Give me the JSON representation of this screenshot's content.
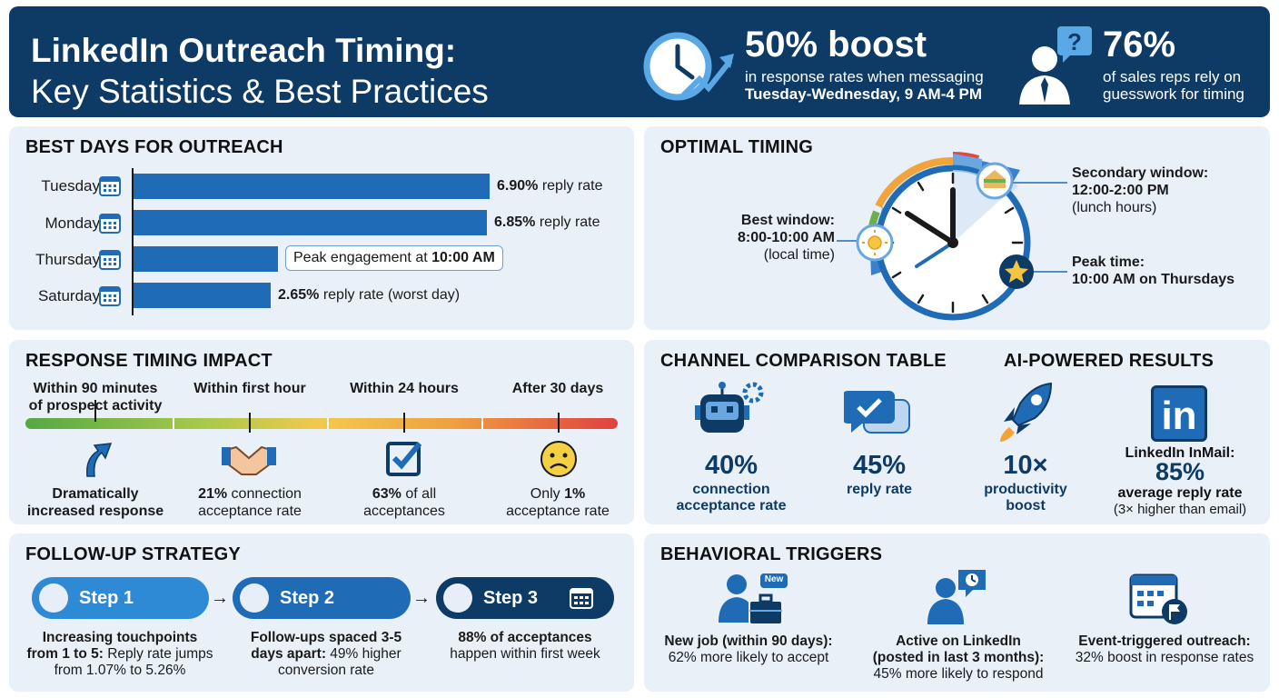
{
  "header": {
    "title_line1": "LinkedIn Outreach Timing:",
    "title_line2": "Key Statistics & Best Practices",
    "stat1": {
      "big": "50% boost",
      "line1": "in response rates when messaging",
      "line2": "Tuesday-Wednesday, 9 AM-4 PM",
      "icon": "clock-growth-icon"
    },
    "stat2": {
      "big": "76%",
      "line1": "of sales reps rely on",
      "line2": "guesswork for timing",
      "icon": "person-question-icon"
    }
  },
  "best_days": {
    "title": "BEST DAYS FOR OUTREACH",
    "rows": [
      {
        "day": "Tuesday",
        "pct": "6.90%",
        "suffix": " reply rate",
        "value": 6.9
      },
      {
        "day": "Monday",
        "pct": "6.85%",
        "suffix": " reply rate",
        "value": 6.85
      },
      {
        "day": "Thursday",
        "pct": "",
        "suffix": "",
        "value": 2.8
      },
      {
        "day": "Saturday",
        "pct": "2.65%",
        "suffix": " reply rate (worst day)",
        "value": 2.65
      }
    ],
    "callout_prefix": "Peak engagement at ",
    "callout_bold": "10:00 AM"
  },
  "optimal": {
    "title": "OPTIMAL TIMING",
    "best_l1": "Best window:",
    "best_l2": "8:00-10:00 AM",
    "best_l3": "(local time)",
    "sec_l1": "Secondary window:",
    "sec_l2": "12:00-2:00 PM",
    "sec_l3": "(lunch hours)",
    "peak_l1": "Peak time:",
    "peak_l2": "10:00 AM on Thursdays"
  },
  "response": {
    "title": "RESPONSE TIMING IMPACT",
    "items": [
      {
        "head1": "Within 90 minutes",
        "head2": "of prospect activity",
        "foot_b": "Dramatically",
        "foot_b2": "increased response",
        "icon": "arrow-up-icon"
      },
      {
        "head1": "Within first hour",
        "head2": "",
        "foot_b": "21%",
        "foot_r": " connection",
        "foot_2": "acceptance rate",
        "icon": "handshake-icon"
      },
      {
        "head1": "Within 24 hours",
        "head2": "",
        "foot_b": "63%",
        "foot_r": " of all",
        "foot_2": "acceptances",
        "icon": "checkbox-icon"
      },
      {
        "head1": "After 30 days",
        "head2": "",
        "foot_r0": "Only ",
        "foot_b": "1%",
        "foot_2": "acceptance rate",
        "icon": "sad-face-icon"
      }
    ]
  },
  "followup": {
    "title": "FOLLOW-UP STRATEGY",
    "steps": [
      "Step 1",
      "Step 2",
      "Step 3"
    ],
    "t1_b": "Increasing touchpoints",
    "t1_b2": "from 1 to 5:",
    "t1_r": " Reply rate jumps",
    "t1_3": "from 1.07% to 5.26%",
    "t2_b": "Follow-ups spaced 3-5",
    "t2_b2": "days apart:",
    "t2_r": " 49% higher",
    "t2_3": "conversion rate",
    "t3_b": "88% of acceptances",
    "t3_2": "happen within first week"
  },
  "channel": {
    "title": "CHANNEL COMPARISON TABLE",
    "ai_title": "AI-POWERED RESULTS",
    "items": [
      {
        "num": "40%",
        "l1": "connection",
        "l2": "acceptance rate",
        "icon": "robot-icon"
      },
      {
        "num": "45%",
        "l1": "reply rate",
        "l2": "",
        "icon": "chat-check-icon"
      },
      {
        "num": "10×",
        "l1": "productivity",
        "l2": "boost",
        "icon": "rocket-icon"
      }
    ],
    "inmail_label": "LinkedIn InMail:",
    "inmail_num": "85%",
    "inmail_l1": "average reply rate",
    "inmail_l2": "(3× higher than email)",
    "linkedin_logo": "in"
  },
  "behavior": {
    "title": "BEHAVIORAL TRIGGERS",
    "new_badge": "New",
    "items": [
      {
        "b": "New job (within 90 days):",
        "r": "62% more likely to accept",
        "icon": "new-job-icon"
      },
      {
        "b": "Active on LinkedIn",
        "b2": "(posted in last 3 months):",
        "r": "45% more likely to respond",
        "icon": "active-user-icon"
      },
      {
        "b": "Event-triggered outreach:",
        "r": "32% boost in response rates",
        "icon": "calendar-flag-icon"
      }
    ]
  },
  "colors": {
    "navy": "#0e3a66",
    "blue": "#1f6bb5",
    "panel": "#e9f0f8"
  }
}
